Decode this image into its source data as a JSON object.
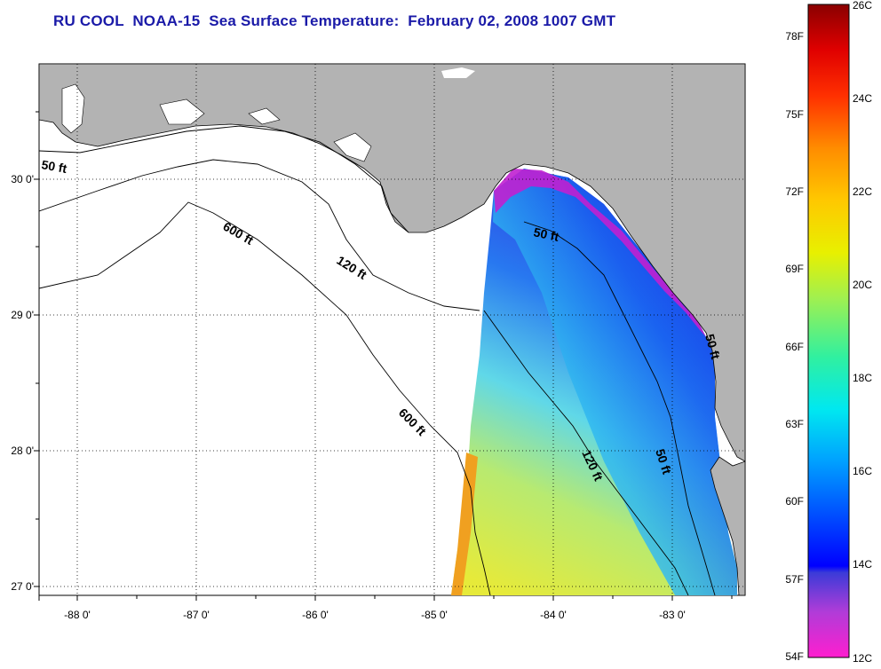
{
  "title": "RU COOL  NOAA-15  Sea Surface Temperature:  February 02, 2008 1007 GMT",
  "lat_labels": [
    "30 0'",
    "29 0'",
    "28 0'",
    "27 0'"
  ],
  "lon_labels": [
    "-88 0'",
    "-87 0'",
    "-86 0'",
    "-85 0'",
    "-84 0'",
    "-83 0'"
  ],
  "depth_labels": [
    {
      "text": "50 ft"
    },
    {
      "text": "600 ft"
    },
    {
      "text": "120 ft"
    },
    {
      "text": "50 ft"
    },
    {
      "text": "600 ft"
    },
    {
      "text": "120 ft"
    },
    {
      "text": "50 ft"
    },
    {
      "text": "50 ft"
    }
  ],
  "colorbar": {
    "fahrenheit": [
      "78F",
      "75F",
      "72F",
      "69F",
      "66F",
      "63F",
      "60F",
      "57F",
      "54F"
    ],
    "celsius": [
      "26C",
      "24C",
      "22C",
      "20C",
      "18C",
      "16C",
      "14C",
      "12C"
    ],
    "range_celsius": [
      12,
      26
    ]
  },
  "colors": {
    "title": "#1a1aa8",
    "land": "#b3b3b3",
    "no_data": "#ffffff"
  }
}
